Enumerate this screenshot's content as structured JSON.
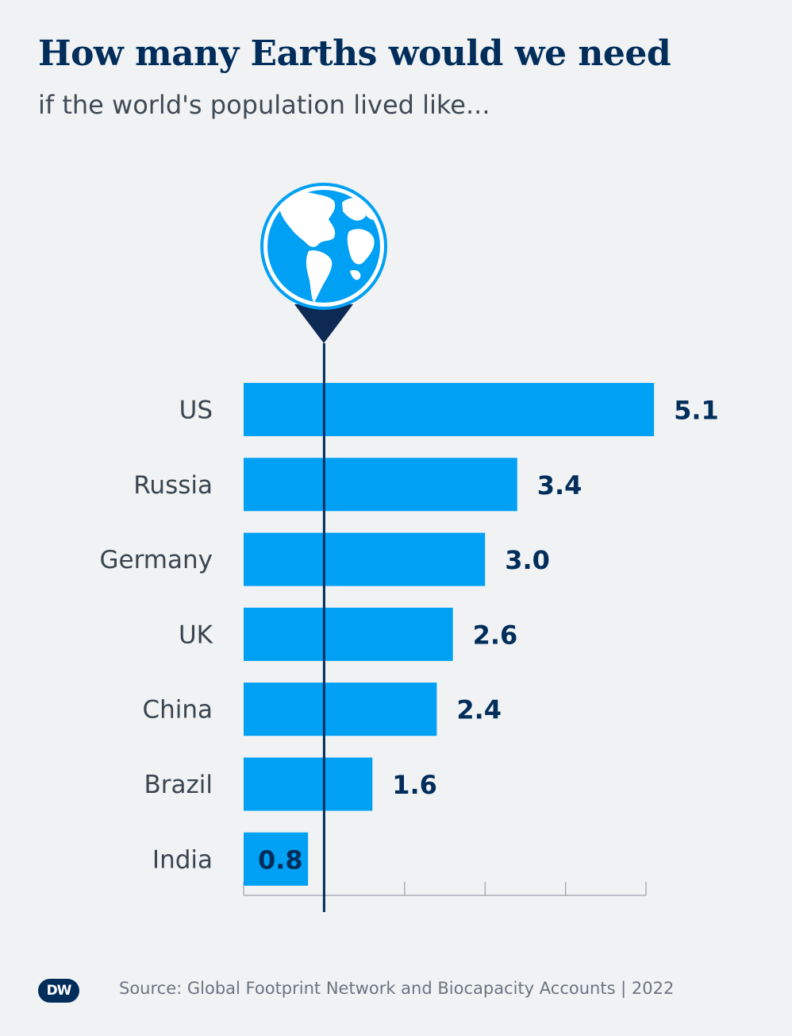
{
  "header": {
    "title": "How many Earths would we need",
    "subtitle": "if the world's population lived like..."
  },
  "chart_data": {
    "type": "bar",
    "orientation": "horizontal",
    "categories": [
      "US",
      "Russia",
      "Germany",
      "UK",
      "China",
      "Brazil",
      "India"
    ],
    "values": [
      5.1,
      3.4,
      3.0,
      2.6,
      2.4,
      1.6,
      0.8
    ],
    "value_labels": [
      "5.1",
      "3.4",
      "3.0",
      "2.6",
      "2.4",
      "1.6",
      "0.8"
    ],
    "xlim": [
      0,
      5
    ],
    "reference_line": 1,
    "reference_marker": "globe-icon",
    "title": "How many Earths would we need",
    "subtitle": "if the world's population lived like...",
    "xlabel": "",
    "ylabel": ""
  },
  "colors": {
    "bar": "#00a0f5",
    "value_text": "#002d5a",
    "reference_line": "#002d5a",
    "globe": "#00a0f5",
    "background": "#f0f2f4"
  },
  "footer": {
    "logo": "DW",
    "source": "Source: Global Footprint Network and Biocapacity Accounts | 2022"
  }
}
